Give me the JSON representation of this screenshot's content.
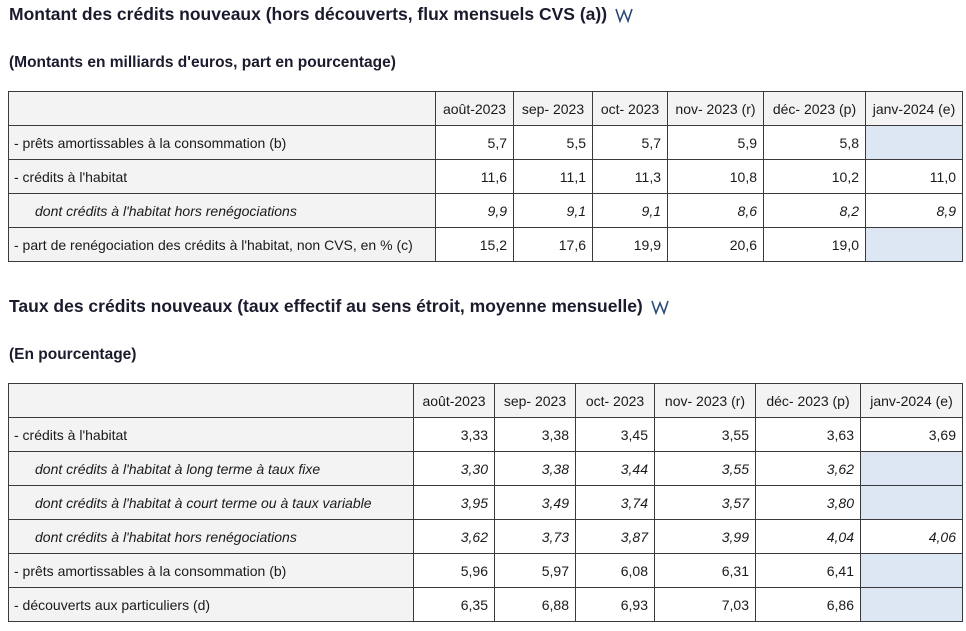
{
  "section1": {
    "title": "Montant des crédits nouveaux (hors découverts, flux mensuels CVS (a))",
    "subtitle": "(Montants en milliards d'euros, part en pourcentage)",
    "columns": [
      "août-2023",
      "sep- 2023",
      "oct- 2023",
      "nov- 2023 (r)",
      "déc- 2023 (p)",
      "janv-2024 (e)"
    ],
    "rows": [
      {
        "label": "- prêts amortissables à la consommation (b)",
        "values": [
          "5,7",
          "5,5",
          "5,7",
          "5,9",
          "5,8",
          ""
        ]
      },
      {
        "label": "- crédits à l'habitat",
        "values": [
          "11,6",
          "11,1",
          "11,3",
          "10,8",
          "10,2",
          "11,0"
        ]
      },
      {
        "label": "dont crédits à l'habitat hors renégociations",
        "values": [
          "9,9",
          "9,1",
          "9,1",
          "8,6",
          "8,2",
          "8,9"
        ]
      },
      {
        "label": "- part de renégociation des crédits à l'habitat, non CVS, en % (c)",
        "values": [
          "15,2",
          "17,6",
          "19,9",
          "20,6",
          "19,0",
          ""
        ]
      }
    ]
  },
  "section2": {
    "title": "Taux des crédits nouveaux (taux effectif au sens étroit, moyenne mensuelle)",
    "subtitle": "(En pourcentage)",
    "columns": [
      "août-2023",
      "sep- 2023",
      "oct- 2023",
      "nov- 2023 (r)",
      "déc- 2023 (p)",
      "janv-2024 (e)"
    ],
    "rows": [
      {
        "label": "- crédits à l'habitat",
        "values": [
          "3,33",
          "3,38",
          "3,45",
          "3,55",
          "3,63",
          "3,69"
        ]
      },
      {
        "label": "dont crédits à l'habitat à long terme à taux fixe",
        "values": [
          "3,30",
          "3,38",
          "3,44",
          "3,55",
          "3,62",
          ""
        ]
      },
      {
        "label": "dont crédits à l'habitat à court terme ou à taux variable",
        "values": [
          "3,95",
          "3,49",
          "3,74",
          "3,57",
          "3,80",
          ""
        ]
      },
      {
        "label": "dont crédits à l'habitat hors renégociations",
        "values": [
          "3,62",
          "3,73",
          "3,87",
          "3,99",
          "4,04",
          "4,06"
        ]
      },
      {
        "label": "- prêts amortissables à la consommation (b)",
        "values": [
          "5,96",
          "5,97",
          "6,08",
          "6,31",
          "6,41",
          ""
        ]
      },
      {
        "label": "- découverts aux particuliers (d)",
        "values": [
          "6,35",
          "6,88",
          "6,93",
          "7,03",
          "6,86",
          ""
        ]
      }
    ]
  },
  "icons": {
    "section_icon": "wikidata-w-icon"
  },
  "colors": {
    "empty_cell": "#dde6f3",
    "header_bg": "#f3f3f3",
    "border": "#3a3a3a",
    "icon": "#2b4a7a"
  }
}
